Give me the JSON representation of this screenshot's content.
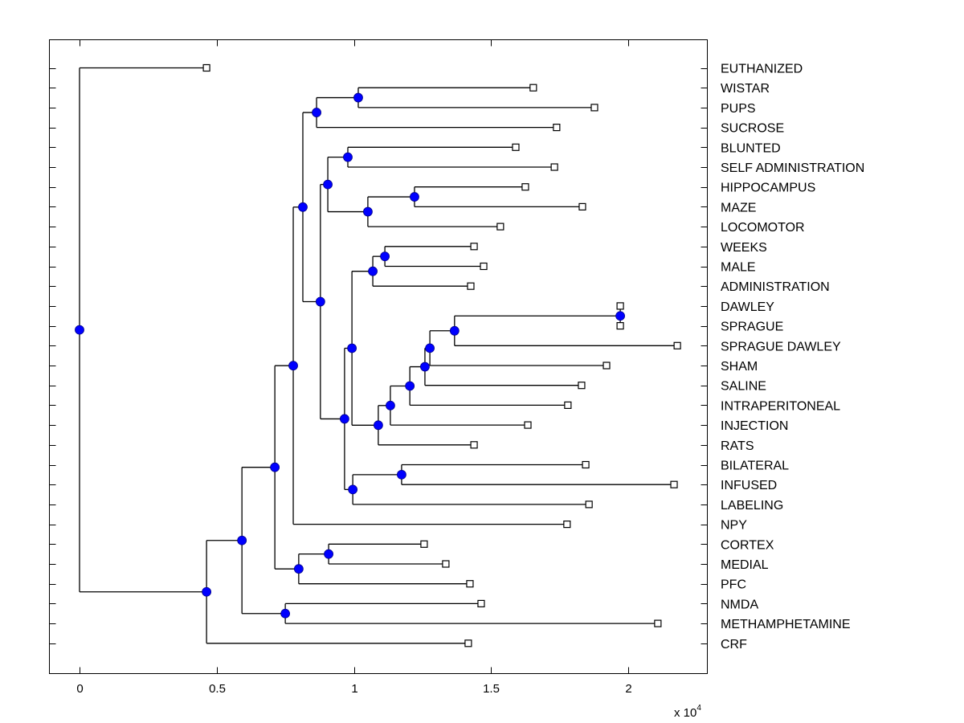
{
  "chart_data": {
    "type": "dendrogram",
    "title": "",
    "xlabel": "",
    "ylabel": "",
    "x_multiplier_label": "x 10",
    "x_multiplier_exponent": "4",
    "xlim": [
      -0.11,
      2.29
    ],
    "x_ticks": [
      0,
      0.5,
      1,
      1.5,
      2
    ],
    "x_tick_labels": [
      "0",
      "0.5",
      "1",
      "1.5",
      "2"
    ],
    "grid": false,
    "colors": {
      "node": "#0000ff",
      "line": "#000000",
      "leaf_fill": "#ffffff"
    },
    "leaves": [
      {
        "label": "EUTHANIZED",
        "x": 0.463
      },
      {
        "label": "WISTAR",
        "x": 1.654
      },
      {
        "label": "PUPS",
        "x": 1.877
      },
      {
        "label": "SUCROSE",
        "x": 1.739
      },
      {
        "label": "BLUNTED",
        "x": 1.59
      },
      {
        "label": "SELF ADMINISTRATION",
        "x": 1.731
      },
      {
        "label": "HIPPOCAMPUS",
        "x": 1.625
      },
      {
        "label": "MAZE",
        "x": 1.833
      },
      {
        "label": "LOCOMOTOR",
        "x": 1.534
      },
      {
        "label": "WEEKS",
        "x": 1.438
      },
      {
        "label": "MALE",
        "x": 1.473
      },
      {
        "label": "ADMINISTRATION",
        "x": 1.426
      },
      {
        "label": "DAWLEY",
        "x": 1.971
      },
      {
        "label": "SPRAGUE",
        "x": 1.971
      },
      {
        "label": "SPRAGUE DAWLEY",
        "x": 2.179
      },
      {
        "label": "SHAM",
        "x": 1.921
      },
      {
        "label": "SALINE",
        "x": 1.83
      },
      {
        "label": "INTRAPERITONEAL",
        "x": 1.78
      },
      {
        "label": "INJECTION",
        "x": 1.634
      },
      {
        "label": "RATS",
        "x": 1.438
      },
      {
        "label": "BILATERAL",
        "x": 1.845
      },
      {
        "label": "INFUSED",
        "x": 2.167
      },
      {
        "label": "LABELING",
        "x": 1.857
      },
      {
        "label": "NPY",
        "x": 1.777
      },
      {
        "label": "CORTEX",
        "x": 1.256
      },
      {
        "label": "MEDIAL",
        "x": 1.335
      },
      {
        "label": "PFC",
        "x": 1.423
      },
      {
        "label": "NMDA",
        "x": 1.464
      },
      {
        "label": "METHAMPHETAMINE",
        "x": 2.108
      },
      {
        "label": "CRF",
        "x": 1.417
      }
    ],
    "tree": {
      "x": 0.0,
      "children": [
        {
          "leaf": 0
        },
        {
          "x": 0.463,
          "children": [
            {
              "x": 0.592,
              "children": [
                {
                  "x": 0.712,
                  "children": [
                    {
                      "x": 0.779,
                      "children": [
                        {
                          "x": 0.814,
                          "children": [
                            {
                              "x": 0.864,
                              "children": [
                                {
                                  "x": 1.016,
                                  "children": [
                                    {
                                      "leaf": 1
                                    },
                                    {
                                      "leaf": 2
                                    }
                                  ]
                                },
                                {
                                  "leaf": 3
                                }
                              ]
                            },
                            {
                              "x": 0.878,
                              "children": [
                                {
                                  "x": 0.905,
                                  "children": [
                                    {
                                      "x": 0.978,
                                      "children": [
                                        {
                                          "leaf": 4
                                        },
                                        {
                                          "leaf": 5
                                        }
                                      ]
                                    },
                                    {
                                      "x": 1.051,
                                      "children": [
                                        {
                                          "x": 1.221,
                                          "children": [
                                            {
                                              "leaf": 6
                                            },
                                            {
                                              "leaf": 7
                                            }
                                          ]
                                        },
                                        {
                                          "leaf": 8
                                        }
                                      ]
                                    }
                                  ]
                                },
                                {
                                  "x": 0.966,
                                  "children": [
                                    {
                                      "x": 0.993,
                                      "children": [
                                        {
                                          "x": 1.069,
                                          "children": [
                                            {
                                              "x": 1.113,
                                              "children": [
                                                {
                                                  "leaf": 9
                                                },
                                                {
                                                  "leaf": 10
                                                }
                                              ]
                                            },
                                            {
                                              "leaf": 11
                                            }
                                          ]
                                        },
                                        {
                                          "x": 1.089,
                                          "children": [
                                            {
                                              "x": 1.133,
                                              "children": [
                                                {
                                                  "x": 1.204,
                                                  "children": [
                                                    {
                                                      "x": 1.259,
                                                      "children": [
                                                        {
                                                          "x": 1.277,
                                                          "children": [
                                                            {
                                                              "x": 1.367,
                                                              "children": [
                                                                {
                                                                  "x": 1.971,
                                                                  "children": [
                                                                    {
                                                                      "leaf": 12
                                                                    },
                                                                    {
                                                                      "leaf": 13
                                                                    }
                                                                  ]
                                                                },
                                                                {
                                                                  "leaf": 14
                                                                }
                                                              ]
                                                            },
                                                            {
                                                              "leaf": 15
                                                            }
                                                          ]
                                                        },
                                                        {
                                                          "leaf": 16
                                                        }
                                                      ]
                                                    },
                                                    {
                                                      "leaf": 17
                                                    }
                                                  ]
                                                },
                                                {
                                                  "leaf": 18
                                                }
                                              ]
                                            },
                                            {
                                              "leaf": 19
                                            }
                                          ]
                                        }
                                      ]
                                    },
                                    {
                                      "x": 0.996,
                                      "children": [
                                        {
                                          "x": 1.174,
                                          "children": [
                                            {
                                              "leaf": 20
                                            },
                                            {
                                              "leaf": 21
                                            }
                                          ]
                                        },
                                        {
                                          "leaf": 22
                                        }
                                      ]
                                    }
                                  ]
                                }
                              ]
                            }
                          ]
                        },
                        {
                          "leaf": 23
                        }
                      ]
                    },
                    {
                      "x": 0.799,
                      "children": [
                        {
                          "x": 0.908,
                          "children": [
                            {
                              "leaf": 24
                            },
                            {
                              "leaf": 25
                            }
                          ]
                        },
                        {
                          "leaf": 26
                        }
                      ]
                    }
                  ]
                },
                {
                  "x": 0.75,
                  "children": [
                    {
                      "leaf": 27
                    },
                    {
                      "leaf": 28
                    }
                  ]
                }
              ]
            },
            {
              "leaf": 29
            }
          ]
        }
      ]
    }
  }
}
